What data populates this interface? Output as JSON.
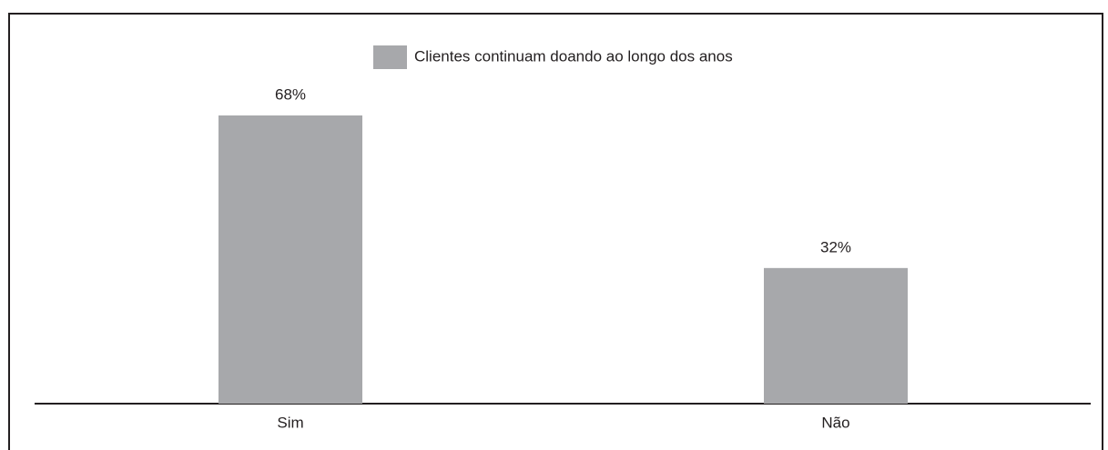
{
  "chart_data": {
    "type": "bar",
    "categories": [
      "Sim",
      "Não"
    ],
    "series": [
      {
        "name": "Clientes continuam doando ao longo dos anos",
        "color": "#a7a8ab",
        "values": [
          68,
          32
        ],
        "value_labels": [
          "68%",
          "32%"
        ]
      }
    ]
  }
}
